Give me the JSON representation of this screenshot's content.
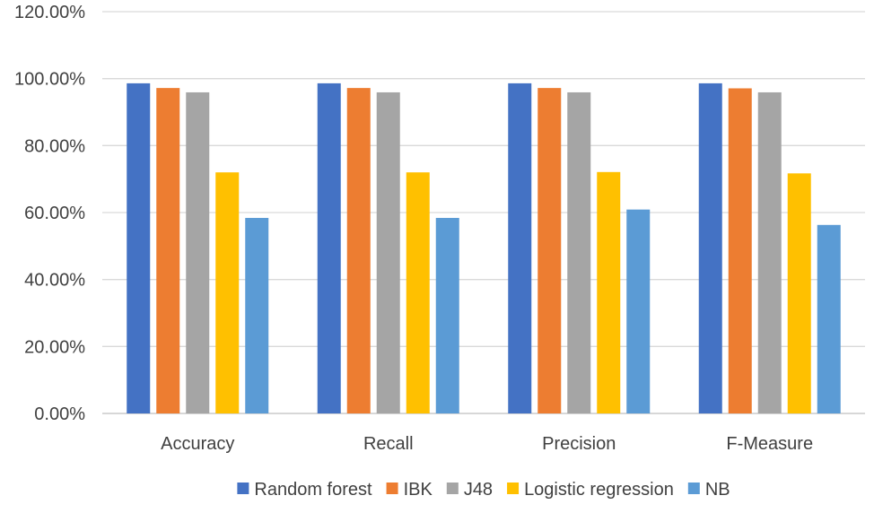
{
  "chart_data": {
    "type": "bar",
    "title": "",
    "xlabel": "",
    "ylabel": "",
    "ylim": [
      0,
      120
    ],
    "y_ticks": [
      "0.00%",
      "20.00%",
      "40.00%",
      "60.00%",
      "80.00%",
      "100.00%",
      "120.00%"
    ],
    "y_tick_values": [
      0,
      20,
      40,
      60,
      80,
      100,
      120
    ],
    "grid": true,
    "legend_position": "bottom",
    "categories": [
      "Accuracy",
      "Recall",
      "Precision",
      "F-Measure"
    ],
    "series": [
      {
        "name": "Random forest",
        "color": "#4472C4",
        "values": [
          98.6,
          98.6,
          98.6,
          98.6
        ]
      },
      {
        "name": "IBK",
        "color": "#ED7D31",
        "values": [
          97.2,
          97.2,
          97.2,
          97.1
        ]
      },
      {
        "name": "J48",
        "color": "#A5A5A5",
        "values": [
          95.9,
          95.9,
          95.9,
          95.9
        ]
      },
      {
        "name": "Logistic regression",
        "color": "#FFC000",
        "values": [
          72.0,
          72.0,
          72.1,
          71.7
        ]
      },
      {
        "name": "NB",
        "color": "#5B9BD5",
        "values": [
          58.4,
          58.4,
          60.9,
          56.3
        ]
      }
    ]
  }
}
